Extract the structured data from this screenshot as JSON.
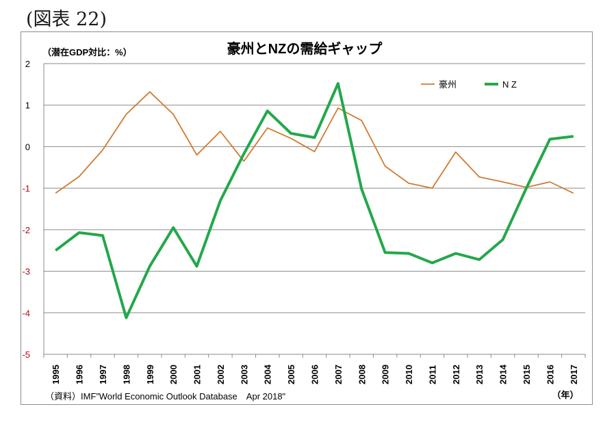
{
  "figure_label": "(図表 22)",
  "chart_data": {
    "type": "line",
    "title": "豪州とNZの需給ギャップ",
    "ylabel": "（潜在GDP対比：%）",
    "xlabel": "（年）",
    "ylim": [
      -5,
      2
    ],
    "yticks": [
      "2",
      "1",
      "0",
      "-1",
      "-2",
      "-3",
      "-4",
      "-5"
    ],
    "categories": [
      "1995",
      "1996",
      "1997",
      "1998",
      "1999",
      "2000",
      "2001",
      "2002",
      "2003",
      "2004",
      "2005",
      "2006",
      "2007",
      "2008",
      "2009",
      "2010",
      "2011",
      "2012",
      "2013",
      "2014",
      "2015",
      "2016",
      "2017"
    ],
    "series": [
      {
        "name": "豪州",
        "color": "#d07a2e",
        "values": [
          -1.12,
          -0.72,
          -0.08,
          0.78,
          1.32,
          0.78,
          -0.2,
          0.37,
          -0.35,
          0.45,
          0.2,
          -0.12,
          0.93,
          0.63,
          -0.47,
          -0.88,
          -1.0,
          -0.13,
          -0.73,
          -0.85,
          -0.98,
          -0.85,
          -1.12
        ]
      },
      {
        "name": "N Z",
        "color": "#22a84a",
        "values": [
          -2.5,
          -2.07,
          -2.14,
          -4.12,
          -2.88,
          -1.95,
          -2.88,
          -1.3,
          -0.17,
          0.86,
          0.32,
          0.22,
          1.52,
          -1.02,
          -2.55,
          -2.57,
          -2.8,
          -2.57,
          -2.72,
          -2.24,
          -1.0,
          0.18,
          0.25
        ]
      }
    ],
    "grid": true,
    "legend": "top-right",
    "source": "（資料）IMF”World Economic Outlook Database　Apr 2018\""
  }
}
